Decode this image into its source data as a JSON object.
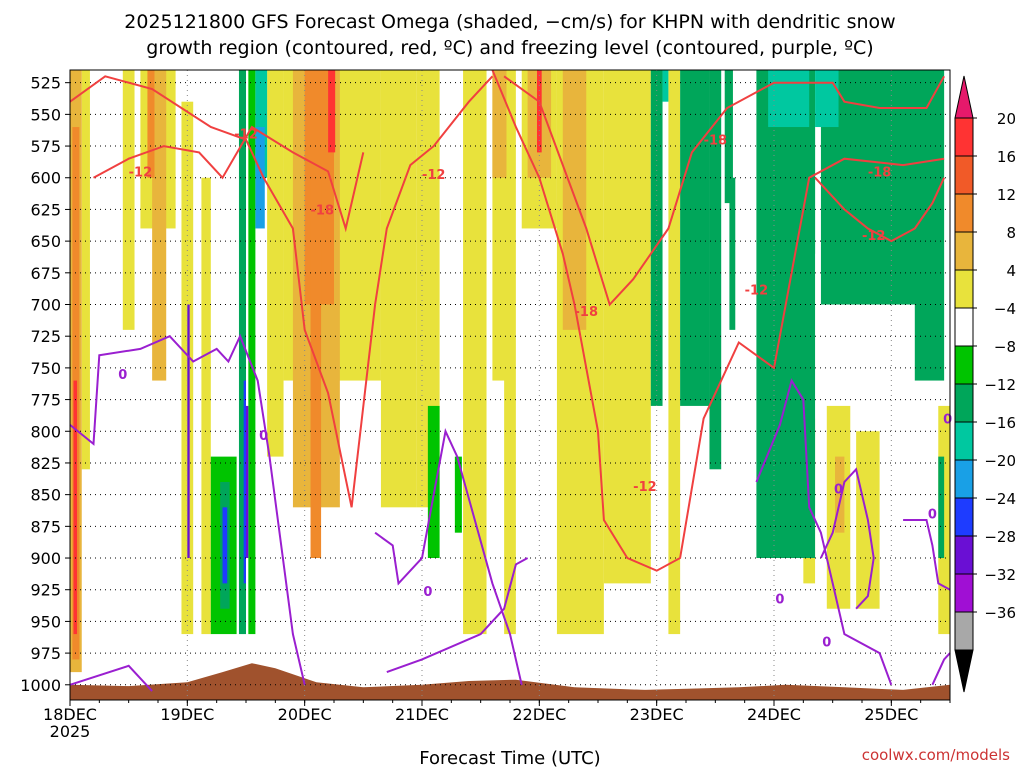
{
  "chart_data": {
    "type": "heatmap",
    "title_line1": "2025121800 GFS Forecast Omega (shaded, −cm/s) for KHPN with dendritic snow",
    "title_line2": "growth region (contoured, red, ºC) and freezing level (contoured, purple, ºC)",
    "xlabel": "Forecast Time (UTC)",
    "x_ticks": [
      "18DEC",
      "19DEC",
      "20DEC",
      "21DEC",
      "22DEC",
      "23DEC",
      "24DEC",
      "25DEC"
    ],
    "x_year": "2025",
    "x_range_days": [
      0,
      7.5
    ],
    "y_ticks": [
      525,
      550,
      575,
      600,
      625,
      650,
      675,
      700,
      725,
      750,
      775,
      800,
      825,
      850,
      875,
      900,
      925,
      950,
      975,
      1000
    ],
    "y_range_hpa": [
      515,
      1012
    ],
    "grid": true,
    "colorbar": {
      "labels": [
        "20",
        "16",
        "12",
        "8",
        "4",
        "−4",
        "−8",
        "−12",
        "−16",
        "−20",
        "−24",
        "−28",
        "−32",
        "−36"
      ],
      "colors": [
        "#e6196b",
        "#ff3333",
        "#f15a28",
        "#f08a2b",
        "#e8b53c",
        "#e8e23c",
        "#ffffff",
        "#00c400",
        "#00a65a",
        "#00c8a0",
        "#19a0e6",
        "#1e3cff",
        "#6a0fd4",
        "#a00fd4",
        "#a8a8a8",
        "#000000"
      ]
    },
    "contours": {
      "dendritic_snow_growth": {
        "color": "#f04040",
        "levels": [
          "-12",
          "-18"
        ]
      },
      "freezing_level": {
        "color": "#9a1fd0",
        "levels": [
          "0"
        ]
      }
    },
    "terrain_color": "#a0522d",
    "footer_credit": "coolwx.com/models"
  }
}
